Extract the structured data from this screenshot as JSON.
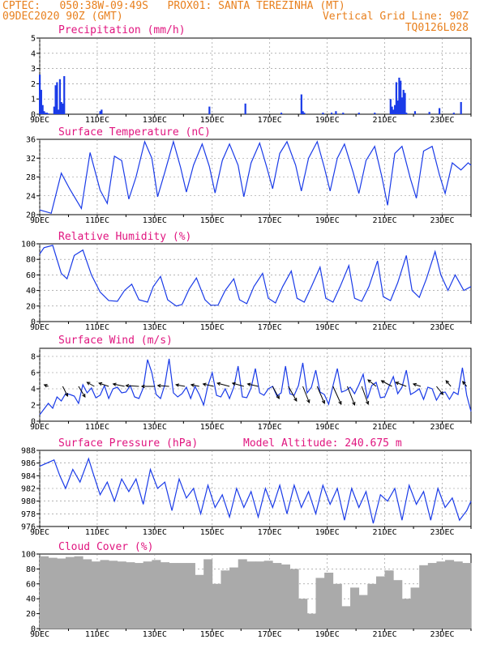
{
  "header": {
    "line1": "CPTEC:   050:38W-09:49S   PROX01: SANTA TEREZINHA (MT)",
    "line2": "09DEC2020 90Z (GMT)",
    "right1": "Vertical Grid Line: 90Z",
    "right2": "TQ0126L028"
  },
  "colors": {
    "header": "#e8801e",
    "title": "#e0157f",
    "line": "#1a3be8",
    "bar": "#1a3be8",
    "cloud": "#aaaaaa",
    "grid": "#888888"
  },
  "x_axis": {
    "start_day": 9,
    "end_day": 24,
    "tick_days": [
      9,
      11,
      13,
      15,
      17,
      19,
      21,
      23
    ],
    "tick_labels": [
      "9DEC",
      "11DEC",
      "13DEC",
      "15DEC",
      "17DEC",
      "19DEC",
      "21DEC",
      "23DEC"
    ],
    "grid": "dotted"
  },
  "chart_data": [
    {
      "type": "bar",
      "title": "Precipitation (mm/h)",
      "ylim": [
        0,
        5
      ],
      "yticks": [
        0,
        1,
        2,
        3,
        4,
        5
      ],
      "x": [
        9.0,
        9.05,
        9.1,
        9.15,
        9.2,
        9.25,
        9.3,
        9.5,
        9.55,
        9.6,
        9.65,
        9.7,
        9.75,
        9.8,
        9.85,
        11.1,
        11.15,
        14.9,
        16.15,
        17.4,
        18.1,
        18.15,
        18.2,
        18.85,
        19.15,
        19.3,
        19.55,
        20.1,
        20.65,
        21.2,
        21.25,
        21.3,
        21.35,
        21.4,
        21.45,
        21.5,
        21.55,
        21.6,
        21.65,
        21.7,
        21.75,
        22.05,
        22.55,
        22.9,
        23.4,
        23.65
      ],
      "values": [
        2.6,
        1.6,
        0.6,
        0.2,
        0.1,
        0.1,
        0.05,
        0.5,
        1.9,
        2.1,
        0.3,
        2.3,
        0.8,
        0.7,
        2.5,
        0.2,
        0.3,
        0.5,
        0.7,
        0.1,
        1.3,
        0.2,
        0.1,
        0.1,
        0.1,
        0.2,
        0.1,
        0.1,
        0.1,
        1.0,
        0.5,
        0.3,
        0.6,
        2.1,
        0.9,
        2.4,
        2.2,
        1.1,
        1.6,
        1.4,
        0.1,
        0.2,
        0.15,
        0.4,
        0.1,
        0.8
      ]
    },
    {
      "type": "line",
      "title": "Surface Temperature (nC)",
      "ylim": [
        20,
        36
      ],
      "yticks": [
        20,
        24,
        28,
        32,
        36
      ],
      "x": [
        9.0,
        9.4,
        9.75,
        10.05,
        10.45,
        10.75,
        11.1,
        11.35,
        11.6,
        11.85,
        12.1,
        12.35,
        12.65,
        12.9,
        13.1,
        13.35,
        13.65,
        13.9,
        14.1,
        14.35,
        14.65,
        14.9,
        15.1,
        15.35,
        15.6,
        15.9,
        16.1,
        16.35,
        16.65,
        16.9,
        17.1,
        17.35,
        17.6,
        17.9,
        18.1,
        18.35,
        18.65,
        18.9,
        19.1,
        19.35,
        19.6,
        19.9,
        20.1,
        20.35,
        20.65,
        20.9,
        21.1,
        21.35,
        21.6,
        21.9,
        22.1,
        22.35,
        22.65,
        22.9,
        23.1,
        23.35,
        23.65,
        23.9,
        24.0
      ],
      "y": [
        21.0,
        20.3,
        28.8,
        25.4,
        21.3,
        33.2,
        25.2,
        22.4,
        32.4,
        31.5,
        23.3,
        28.0,
        35.5,
        32.0,
        23.8,
        29.0,
        35.5,
        30.0,
        24.8,
        30.5,
        35.0,
        30.2,
        24.6,
        31.5,
        35.0,
        30.5,
        23.8,
        31.0,
        35.2,
        30.0,
        25.5,
        33.0,
        35.5,
        30.5,
        25.0,
        32.0,
        35.5,
        30.0,
        25.0,
        32.0,
        35.0,
        29.0,
        24.5,
        31.5,
        34.5,
        28.0,
        22.0,
        33.0,
        34.5,
        27.5,
        23.5,
        33.5,
        34.5,
        28.5,
        24.5,
        31.0,
        29.5,
        31.0,
        30.5
      ]
    },
    {
      "type": "line",
      "title": "Relative Humidity (%)",
      "ylim": [
        0,
        100
      ],
      "yticks": [
        0,
        20,
        40,
        60,
        80,
        100
      ],
      "x": [
        9.0,
        9.15,
        9.45,
        9.75,
        9.95,
        10.2,
        10.5,
        10.8,
        11.1,
        11.4,
        11.7,
        11.95,
        12.2,
        12.45,
        12.75,
        12.95,
        13.2,
        13.45,
        13.75,
        13.95,
        14.2,
        14.45,
        14.75,
        14.95,
        15.2,
        15.45,
        15.75,
        15.95,
        16.2,
        16.45,
        16.75,
        16.95,
        17.2,
        17.45,
        17.75,
        17.95,
        18.2,
        18.45,
        18.75,
        18.95,
        19.2,
        19.45,
        19.75,
        19.95,
        20.2,
        20.45,
        20.75,
        20.95,
        21.2,
        21.45,
        21.75,
        21.95,
        22.2,
        22.45,
        22.75,
        22.95,
        23.2,
        23.45,
        23.75,
        24.0
      ],
      "y": [
        87,
        95,
        98,
        62,
        55,
        85,
        92,
        60,
        38,
        27,
        26,
        40,
        48,
        28,
        25,
        45,
        58,
        28,
        20,
        22,
        42,
        56,
        28,
        21,
        21,
        40,
        55,
        28,
        23,
        45,
        62,
        30,
        24,
        45,
        65,
        30,
        25,
        45,
        70,
        30,
        25,
        45,
        72,
        30,
        26,
        45,
        78,
        32,
        27,
        50,
        85,
        40,
        31,
        55,
        90,
        60,
        40,
        60,
        40,
        45
      ]
    },
    {
      "type": "line",
      "title": "Surface Wind (m/s)",
      "ylim": [
        0,
        9
      ],
      "yticks": [
        0,
        2,
        4,
        6,
        8
      ],
      "x": [
        9.0,
        9.15,
        9.3,
        9.45,
        9.6,
        9.75,
        9.9,
        10.05,
        10.2,
        10.35,
        10.5,
        10.65,
        10.8,
        10.95,
        11.1,
        11.25,
        11.4,
        11.55,
        11.7,
        11.85,
        12.0,
        12.15,
        12.3,
        12.45,
        12.6,
        12.75,
        12.9,
        13.05,
        13.2,
        13.35,
        13.5,
        13.65,
        13.8,
        13.95,
        14.1,
        14.25,
        14.4,
        14.55,
        14.7,
        14.85,
        15.0,
        15.15,
        15.3,
        15.45,
        15.6,
        15.75,
        15.9,
        16.05,
        16.2,
        16.35,
        16.5,
        16.65,
        16.8,
        16.95,
        17.1,
        17.25,
        17.4,
        17.55,
        17.7,
        17.85,
        18.0,
        18.15,
        18.3,
        18.45,
        18.6,
        18.75,
        18.9,
        19.05,
        19.2,
        19.35,
        19.5,
        19.65,
        19.8,
        19.95,
        20.1,
        20.25,
        20.4,
        20.55,
        20.7,
        20.85,
        21.0,
        21.15,
        21.3,
        21.45,
        21.6,
        21.75,
        21.9,
        22.05,
        22.2,
        22.35,
        22.5,
        22.65,
        22.8,
        22.95,
        23.1,
        23.25,
        23.4,
        23.55,
        23.7,
        23.85,
        24.0
      ],
      "y": [
        0.8,
        1.5,
        2.2,
        1.6,
        3.0,
        2.5,
        3.4,
        3.3,
        3.1,
        2.2,
        4.5,
        3.5,
        4.1,
        2.9,
        3.2,
        4.4,
        2.8,
        4.0,
        4.2,
        3.5,
        3.6,
        4.4,
        3.0,
        2.8,
        4.1,
        7.6,
        6.0,
        3.3,
        2.8,
        4.5,
        7.7,
        3.5,
        3.0,
        3.4,
        4.2,
        2.8,
        4.3,
        3.3,
        2.0,
        4.4,
        6.0,
        3.2,
        3.0,
        4.0,
        2.8,
        4.2,
        6.8,
        3.0,
        2.9,
        4.1,
        6.5,
        3.5,
        3.2,
        4.0,
        4.3,
        3.1,
        3.5,
        6.8,
        3.4,
        3.2,
        4.4,
        7.2,
        3.5,
        4.2,
        6.3,
        3.6,
        3.3,
        2.1,
        4.4,
        6.5,
        3.6,
        3.8,
        4.2,
        3.4,
        4.5,
        5.8,
        2.8,
        4.4,
        4.8,
        2.9,
        3.0,
        4.3,
        5.5,
        3.4,
        4.2,
        6.3,
        3.3,
        3.6,
        4.0,
        2.7,
        4.2,
        4.0,
        2.6,
        3.5,
        3.6,
        2.7,
        3.6,
        3.3,
        6.6,
        3.2,
        1.2
      ],
      "vector_x": [
        9.3,
        9.8,
        10.35,
        10.9,
        11.4,
        11.95,
        12.45,
        13.0,
        13.5,
        14.05,
        14.55,
        15.05,
        15.6,
        16.1,
        16.6,
        17.1,
        17.65,
        18.15,
        18.65,
        19.2,
        19.7,
        20.2,
        20.7,
        21.25,
        21.75,
        22.25,
        22.8,
        23.3,
        23.85
      ],
      "vector_u": [
        -0.5,
        0.6,
        0.8,
        -0.9,
        -1.2,
        -1.4,
        -1.6,
        -1.6,
        -1.4,
        -1.1,
        -1.0,
        -1.3,
        -1.5,
        -1.4,
        -1.3,
        0.8,
        1.0,
        0.8,
        0.9,
        1.0,
        0.9,
        0.8,
        -1.0,
        -1.3,
        -1.3,
        -0.9,
        0.8,
        -0.6,
        -0.5
      ],
      "vector_v": [
        0.2,
        -1.2,
        -1.3,
        0.5,
        0.4,
        0.3,
        0.1,
        0.0,
        0.1,
        0.2,
        0.2,
        0.3,
        0.4,
        0.4,
        0.3,
        -1.5,
        -1.8,
        -2.0,
        -2.1,
        -2.2,
        -2.3,
        -2.2,
        0.8,
        0.7,
        0.5,
        0.3,
        -1.0,
        0.7,
        0.6
      ]
    },
    {
      "type": "line",
      "title": "Surface Pressure (hPa)",
      "annotation": "Model Altitude: 240.675 m",
      "ylim": [
        976,
        988
      ],
      "yticks": [
        976,
        978,
        980,
        982,
        984,
        986,
        988
      ],
      "x": [
        9.0,
        9.25,
        9.5,
        9.7,
        9.9,
        10.15,
        10.4,
        10.7,
        10.85,
        11.1,
        11.35,
        11.6,
        11.85,
        12.1,
        12.35,
        12.6,
        12.85,
        13.1,
        13.35,
        13.6,
        13.85,
        14.1,
        14.35,
        14.6,
        14.85,
        15.1,
        15.35,
        15.6,
        15.85,
        16.1,
        16.35,
        16.6,
        16.85,
        17.1,
        17.35,
        17.6,
        17.85,
        18.1,
        18.35,
        18.6,
        18.85,
        19.1,
        19.35,
        19.6,
        19.85,
        20.1,
        20.35,
        20.6,
        20.85,
        21.1,
        21.35,
        21.6,
        21.85,
        22.1,
        22.35,
        22.6,
        22.85,
        23.1,
        23.35,
        23.6,
        23.85,
        24.0
      ],
      "y": [
        985.5,
        986.0,
        986.5,
        984.0,
        982.0,
        985.0,
        983.0,
        986.7,
        984.5,
        981.0,
        983.0,
        980.0,
        983.5,
        981.5,
        983.5,
        979.5,
        985.0,
        982.0,
        983.0,
        978.5,
        983.5,
        980.5,
        982.0,
        978.0,
        982.5,
        979.0,
        981.0,
        977.5,
        982.0,
        979.0,
        981.5,
        977.5,
        982.0,
        979.0,
        982.5,
        978.0,
        982.5,
        979.0,
        981.5,
        978.0,
        982.5,
        979.5,
        982.0,
        977.0,
        982.0,
        979.0,
        981.5,
        976.5,
        981.0,
        980.0,
        982.0,
        977.0,
        982.5,
        979.5,
        981.5,
        977.0,
        982.0,
        979.0,
        980.5,
        977.0,
        978.5,
        980.0
      ]
    },
    {
      "type": "area",
      "title": "Cloud Cover (%)",
      "ylim": [
        0,
        100
      ],
      "yticks": [
        0,
        20,
        40,
        60,
        80,
        100
      ],
      "x": [
        9.0,
        9.3,
        9.6,
        9.9,
        10.2,
        10.5,
        10.8,
        11.1,
        11.4,
        11.7,
        12.0,
        12.3,
        12.6,
        12.9,
        13.2,
        13.5,
        13.8,
        14.1,
        14.4,
        14.7,
        15.0,
        15.3,
        15.6,
        15.9,
        16.2,
        16.5,
        16.8,
        17.1,
        17.4,
        17.7,
        18.0,
        18.3,
        18.6,
        18.9,
        19.2,
        19.5,
        19.8,
        20.1,
        20.4,
        20.7,
        21.0,
        21.3,
        21.6,
        21.9,
        22.2,
        22.5,
        22.8,
        23.1,
        23.4,
        23.7,
        24.0
      ],
      "y": [
        97,
        95,
        94,
        96,
        97,
        93,
        90,
        92,
        91,
        90,
        89,
        88,
        90,
        92,
        89,
        88,
        88,
        88,
        72,
        93,
        60,
        78,
        82,
        93,
        90,
        90,
        91,
        88,
        86,
        80,
        40,
        20,
        68,
        75,
        60,
        30,
        55,
        45,
        60,
        70,
        78,
        65,
        40,
        55,
        85,
        88,
        90,
        92,
        90,
        88,
        89
      ]
    }
  ]
}
